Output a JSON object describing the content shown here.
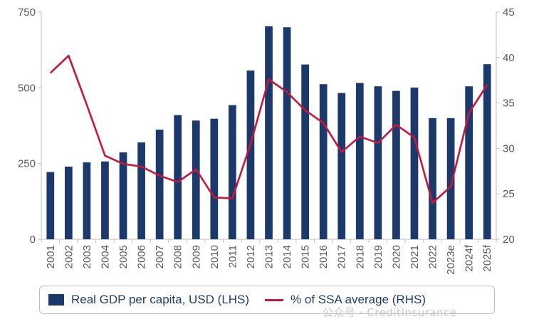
{
  "chart_data": {
    "type": "bar+line",
    "categories": [
      "2001",
      "2002",
      "2003",
      "2004",
      "2005",
      "2006",
      "2007",
      "2008",
      "2009",
      "2010",
      "2011",
      "2012",
      "2013",
      "2014",
      "2015",
      "2016",
      "2017",
      "2018",
      "2019",
      "2020",
      "2021",
      "2022",
      "2023e",
      "2024f",
      "2025f"
    ],
    "series": [
      {
        "name": "Real GDP per capita, USD (LHS)",
        "type": "bar",
        "axis": "left",
        "color": "#1b3a6b",
        "values": [
          222,
          240,
          254,
          257,
          287,
          320,
          362,
          410,
          392,
          398,
          443,
          557,
          703,
          700,
          577,
          512,
          483,
          516,
          505,
          490,
          501,
          400,
          400,
          505,
          578
        ]
      },
      {
        "name": "% of SSA average (RHS)",
        "type": "line",
        "axis": "right",
        "color": "#c8163c",
        "values": [
          38.3,
          40.2,
          34.8,
          29.2,
          28.3,
          28.0,
          27.0,
          26.3,
          27.7,
          24.6,
          24.5,
          30.5,
          37.6,
          36.2,
          34.2,
          32.8,
          29.6,
          31.3,
          30.6,
          32.6,
          31.2,
          24.0,
          25.8,
          33.9,
          37.0
        ]
      }
    ],
    "yleft": {
      "lim": [
        0,
        750
      ],
      "ticks": [
        "0",
        "250",
        "500",
        "750"
      ]
    },
    "yright": {
      "lim": [
        20,
        45
      ],
      "ticks": [
        "20",
        "25",
        "30",
        "35",
        "40",
        "45"
      ]
    },
    "grid": false,
    "legend": "bottom"
  },
  "legend": {
    "bar_label": "Real GDP per capita, USD (LHS)",
    "line_label": "% of SSA average (RHS)"
  },
  "watermark": "公众号 · CreditInsurance"
}
